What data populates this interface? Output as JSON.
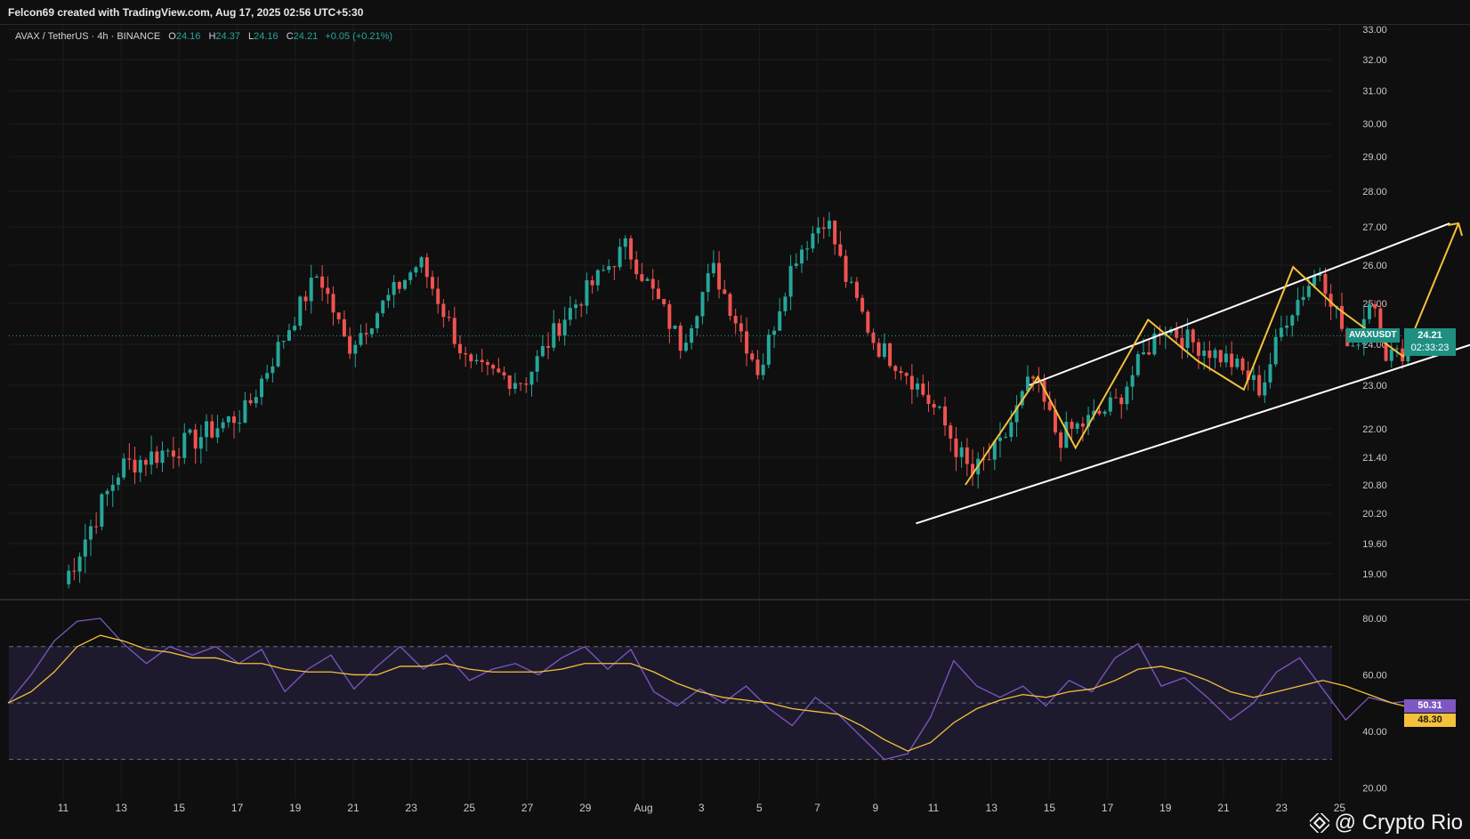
{
  "header": {
    "credit": "Felcon69 created with TradingView.com, Aug 17, 2025 02:56 UTC+5:30"
  },
  "legend": {
    "symbol": "AVAX / TetherUS · 4h · BINANCE",
    "o_label": "O",
    "o": "24.16",
    "h_label": "H",
    "h": "24.37",
    "l_label": "L",
    "l": "24.16",
    "c_label": "C",
    "c": "24.21",
    "change": "+0.05 (+0.21%)"
  },
  "price_tag": {
    "symbol": "AVAXUSDT",
    "price": "24.21",
    "countdown": "02:33:23"
  },
  "rsi_tags": {
    "rsi": "50.31",
    "ma": "48.30"
  },
  "watermark": "@ Crypto Rio",
  "colors": {
    "bg": "#0f0f0f",
    "up": "#26a69a",
    "down": "#ef5350",
    "channel": "#ffffff",
    "path": "#f5c13a",
    "rsi": "#7e57c2",
    "rsi_ma": "#f5c13a",
    "rsi_band": "#1e1a2e"
  },
  "chart_data": [
    {
      "type": "candlestick",
      "price_axis": {
        "ticks": [
          "33.00",
          "32.00",
          "31.00",
          "30.00",
          "29.00",
          "28.00",
          "27.00",
          "26.00",
          "25.00",
          "24.00",
          "23.00",
          "22.00",
          "21.40",
          "20.80",
          "20.20",
          "19.60",
          "19.00"
        ],
        "range": [
          18.8,
          33.3
        ]
      },
      "time_axis": {
        "ticks": [
          "11",
          "13",
          "15",
          "17",
          "19",
          "21",
          "23",
          "25",
          "27",
          "29",
          "Aug",
          "3",
          "5",
          "7",
          "9",
          "11",
          "13",
          "15",
          "17",
          "19",
          "21",
          "23",
          "25"
        ]
      },
      "swing_points": [
        {
          "t": 0,
          "p": 18.8
        },
        {
          "t": 2,
          "p": 21.2
        },
        {
          "t": 4.3,
          "p": 21.7
        },
        {
          "t": 6.3,
          "p": 22.4
        },
        {
          "t": 8.8,
          "p": 25.8
        },
        {
          "t": 9.8,
          "p": 23.9
        },
        {
          "t": 12.3,
          "p": 26.1
        },
        {
          "t": 14.0,
          "p": 23.4
        },
        {
          "t": 15.9,
          "p": 23.1
        },
        {
          "t": 17.2,
          "p": 24.6
        },
        {
          "t": 19.4,
          "p": 26.5
        },
        {
          "t": 21.3,
          "p": 24.0
        },
        {
          "t": 22.4,
          "p": 25.9
        },
        {
          "t": 24.0,
          "p": 23.3
        },
        {
          "t": 25.2,
          "p": 26.2
        },
        {
          "t": 26.3,
          "p": 27.3
        },
        {
          "t": 27.0,
          "p": 25.6
        },
        {
          "t": 28.0,
          "p": 24.0
        },
        {
          "t": 29.0,
          "p": 23.4
        },
        {
          "t": 30.2,
          "p": 22.3
        },
        {
          "t": 31.3,
          "p": 21.0
        },
        {
          "t": 32.3,
          "p": 21.6
        },
        {
          "t": 33.4,
          "p": 23.2
        },
        {
          "t": 34.3,
          "p": 21.8
        },
        {
          "t": 35.4,
          "p": 22.2
        },
        {
          "t": 36.3,
          "p": 22.6
        },
        {
          "t": 37.9,
          "p": 24.5
        },
        {
          "t": 38.5,
          "p": 24.2
        },
        {
          "t": 40.2,
          "p": 23.6
        },
        {
          "t": 41.3,
          "p": 22.9
        },
        {
          "t": 42.1,
          "p": 24.6
        },
        {
          "t": 43.3,
          "p": 25.9
        },
        {
          "t": 44.0,
          "p": 24.6
        },
        {
          "t": 44.4,
          "p": 23.6
        },
        {
          "t": 45.1,
          "p": 25.3
        },
        {
          "t": 45.6,
          "p": 23.8
        },
        {
          "t": 46.0,
          "p": 23.7
        },
        {
          "t": 46.6,
          "p": 24.21
        }
      ],
      "channel": {
        "upper": [
          {
            "t": 33.3,
            "p": 23.0
          },
          {
            "t": 47.8,
            "p": 27.1
          }
        ],
        "lower": [
          {
            "t": 29.4,
            "p": 20.0
          },
          {
            "t": 52.5,
            "p": 24.9
          }
        ]
      },
      "projection_path": [
        {
          "t": 31.1,
          "p": 20.8
        },
        {
          "t": 33.6,
          "p": 23.2
        },
        {
          "t": 34.9,
          "p": 21.6
        },
        {
          "t": 37.4,
          "p": 24.6
        },
        {
          "t": 39.1,
          "p": 23.6
        },
        {
          "t": 40.7,
          "p": 22.9
        },
        {
          "t": 42.4,
          "p": 25.95
        },
        {
          "t": 43.9,
          "p": 24.9
        },
        {
          "t": 46.2,
          "p": 23.7
        },
        {
          "t": 48.1,
          "p": 27.1
        }
      ],
      "last_price": 24.21
    },
    {
      "type": "line",
      "indicator": "RSI",
      "axis": {
        "ticks": [
          "80.00",
          "60.00",
          "40.00",
          "20.00"
        ],
        "range": [
          16,
          86
        ],
        "bands": [
          30,
          70
        ],
        "mid": 50
      },
      "series": [
        {
          "values": [
            50,
            60,
            72,
            79,
            80,
            71,
            64,
            70,
            67,
            70,
            64,
            69,
            54,
            62,
            67,
            55,
            63,
            70,
            62,
            67,
            58,
            62,
            64,
            60,
            66,
            70,
            62,
            69,
            54,
            49,
            55,
            50,
            56,
            48,
            42,
            52,
            46,
            38,
            30,
            32,
            45,
            65,
            56,
            52,
            56,
            49,
            58,
            54,
            66,
            71,
            56,
            59,
            52,
            44,
            50,
            61,
            66,
            55,
            44,
            52,
            50,
            51
          ]
        },
        {
          "values": [
            50,
            54,
            61,
            70,
            74,
            72,
            69,
            68,
            66,
            66,
            64,
            64,
            62,
            61,
            61,
            60,
            60,
            63,
            63,
            64,
            62,
            61,
            61,
            61,
            62,
            64,
            64,
            64,
            61,
            57,
            54,
            52,
            51,
            50,
            48,
            47,
            46,
            42,
            37,
            33,
            36,
            43,
            48,
            51,
            53,
            52,
            54,
            55,
            58,
            62,
            63,
            61,
            58,
            54,
            52,
            54,
            56,
            58,
            56,
            53,
            50,
            48
          ]
        }
      ]
    }
  ]
}
